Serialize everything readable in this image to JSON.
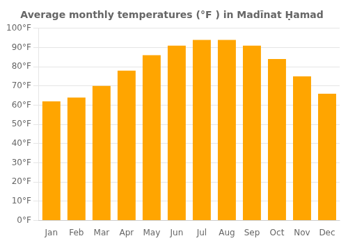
{
  "chart_data": {
    "type": "bar",
    "title": "Average monthly temperatures (°F ) in Madīnat Ḥamad",
    "categories": [
      "Jan",
      "Feb",
      "Mar",
      "Apr",
      "May",
      "Jun",
      "Jul",
      "Aug",
      "Sep",
      "Oct",
      "Nov",
      "Dec"
    ],
    "values": [
      62,
      64,
      70,
      78,
      86,
      91,
      94,
      94,
      91,
      84,
      75,
      66
    ],
    "color": "#FFA500",
    "ylim": [
      0,
      100
    ],
    "yticks": [
      {
        "value": 0,
        "label": "0°F"
      },
      {
        "value": 10,
        "label": "10°F"
      },
      {
        "value": 20,
        "label": "20°F"
      },
      {
        "value": 30,
        "label": "30°F"
      },
      {
        "value": 40,
        "label": "40°F"
      },
      {
        "value": 50,
        "label": "50°F"
      },
      {
        "value": 60,
        "label": "60°F"
      },
      {
        "value": 70,
        "label": "70°F"
      },
      {
        "value": 80,
        "label": "80°F"
      },
      {
        "value": 90,
        "label": "90°F"
      },
      {
        "value": 100,
        "label": "100°F"
      }
    ],
    "grid": true
  }
}
